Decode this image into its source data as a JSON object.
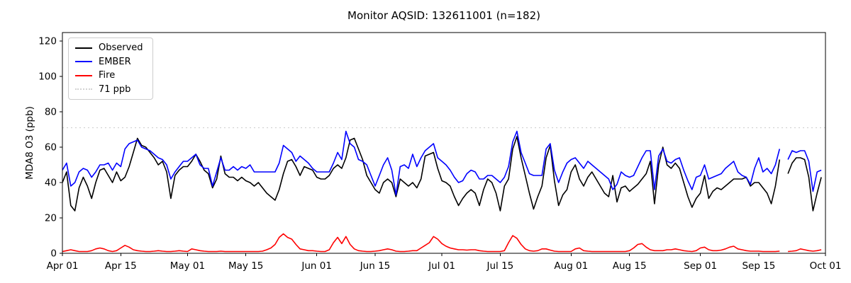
{
  "title": "Monitor AQSID: 132611001 (n=182)",
  "y_axis": {
    "label": "MDA8 O3 (ppb)",
    "ticks": [
      0,
      20,
      40,
      60,
      80,
      100,
      120
    ]
  },
  "x_axis": {
    "tick_labels": [
      "Apr 01",
      "Apr 15",
      "May 01",
      "May 15",
      "Jun 01",
      "Jun 15",
      "Jul 01",
      "Jul 15",
      "Aug 01",
      "Aug 15",
      "Sep 01",
      "Sep 15",
      "Oct 01"
    ],
    "tick_days": [
      0,
      14,
      30,
      44,
      61,
      75,
      91,
      105,
      122,
      136,
      153,
      167,
      183
    ]
  },
  "legend": [
    {
      "label": "Observed",
      "color": "#000000",
      "style": "solid"
    },
    {
      "label": "EMBER",
      "color": "#0000ff",
      "style": "solid"
    },
    {
      "label": "Fire",
      "color": "#ff0000",
      "style": "solid"
    },
    {
      "label": "71 ppb",
      "color": "#d3d3d3",
      "style": "dotted"
    }
  ],
  "chart_data": {
    "type": "line",
    "title": "Monitor AQSID: 132611001 (n=182)",
    "xlabel": "",
    "ylabel": "MDA8 O3 (ppb)",
    "x_start_label": "Apr 01",
    "x_end_label": "Oct 01",
    "x_unit": "day (daily values, index 0 = Apr 01; null = missing day)",
    "n_points": 182,
    "ylim": [
      0,
      124.8
    ],
    "y_ticks": [
      0,
      20,
      40,
      60,
      80,
      100,
      120
    ],
    "x_tick_labels": [
      "Apr 01",
      "Apr 15",
      "May 01",
      "May 15",
      "Jun 01",
      "Jun 15",
      "Jul 01",
      "Jul 15",
      "Aug 01",
      "Aug 15",
      "Sep 01",
      "Sep 15",
      "Oct 01"
    ],
    "x_tick_days": [
      0,
      14,
      30,
      44,
      61,
      75,
      91,
      105,
      122,
      136,
      153,
      167,
      183
    ],
    "total_days": 183,
    "threshold": {
      "value": 71,
      "label": "71 ppb",
      "color": "#d3d3d3",
      "style": "dotted"
    },
    "grid": false,
    "legend_position": "upper left",
    "series": [
      {
        "name": "Observed",
        "color": "#000000",
        "values": [
          40,
          46,
          27,
          24,
          37,
          43,
          38,
          31,
          40,
          47,
          48,
          44,
          40,
          46,
          41,
          43,
          49,
          57,
          65,
          61,
          60,
          57,
          54,
          50,
          52,
          46,
          31,
          44,
          47,
          49,
          49,
          52,
          56,
          52,
          47,
          45,
          37,
          42,
          55,
          45,
          43,
          43,
          41,
          43,
          41,
          40,
          38,
          40,
          37,
          34,
          32,
          30,
          36,
          45,
          52,
          53,
          49,
          44,
          49,
          48,
          47,
          43,
          42,
          42,
          44,
          48,
          50,
          48,
          54,
          64,
          65,
          59,
          53,
          44,
          40,
          36,
          34,
          40,
          42,
          40,
          32,
          42,
          40,
          38,
          40,
          37,
          42,
          55,
          56,
          57,
          48,
          41,
          40,
          38,
          32,
          27,
          31,
          34,
          36,
          34,
          27,
          36,
          42,
          40,
          34,
          24,
          38,
          42,
          59,
          66,
          54,
          44,
          34,
          25,
          32,
          38,
          54,
          61,
          41,
          27,
          33,
          36,
          46,
          50,
          42,
          38,
          43,
          46,
          42,
          38,
          34,
          32,
          44,
          29,
          37,
          38,
          35,
          37,
          39,
          42,
          45,
          52,
          28,
          50,
          60,
          50,
          48,
          51,
          48,
          40,
          32,
          26,
          31,
          34,
          44,
          31,
          35,
          37,
          36,
          38,
          40,
          42,
          42,
          42,
          43,
          38,
          40,
          40,
          37,
          34,
          28,
          38,
          53,
          null,
          45,
          51,
          54,
          54,
          53,
          43,
          24,
          34,
          43
        ]
      },
      {
        "name": "EMBER",
        "color": "#0000ff",
        "values": [
          47,
          51,
          38,
          40,
          46,
          48,
          47,
          43,
          46,
          50,
          50,
          51,
          47,
          51,
          49,
          59,
          62,
          63,
          64,
          60,
          59,
          58,
          56,
          54,
          53,
          50,
          42,
          46,
          49,
          52,
          52,
          54,
          56,
          50,
          48,
          48,
          38,
          46,
          54,
          47,
          47,
          49,
          47,
          49,
          48,
          50,
          46,
          46,
          46,
          46,
          46,
          46,
          51,
          61,
          59,
          57,
          52,
          55,
          53,
          51,
          48,
          46,
          46,
          46,
          46,
          51,
          57,
          53,
          69,
          62,
          60,
          53,
          52,
          50,
          44,
          38,
          44,
          50,
          54,
          47,
          33,
          49,
          50,
          48,
          56,
          49,
          54,
          58,
          60,
          62,
          54,
          52,
          50,
          47,
          43,
          40,
          41,
          45,
          47,
          46,
          42,
          42,
          44,
          44,
          42,
          40,
          43,
          49,
          63,
          69,
          57,
          51,
          45,
          44,
          44,
          44,
          59,
          62,
          47,
          40,
          46,
          51,
          53,
          54,
          51,
          48,
          52,
          50,
          48,
          46,
          44,
          42,
          36,
          39,
          46,
          44,
          43,
          44,
          49,
          54,
          58,
          58,
          36,
          55,
          59,
          52,
          51,
          53,
          54,
          47,
          41,
          36,
          43,
          44,
          50,
          42,
          43,
          44,
          45,
          48,
          50,
          52,
          46,
          44,
          43,
          39,
          48,
          54,
          46,
          48,
          45,
          50,
          59,
          null,
          53,
          58,
          57,
          58,
          58,
          52,
          35,
          46,
          47
        ]
      },
      {
        "name": "Fire",
        "color": "#ff0000",
        "values": [
          1,
          1.5,
          2,
          1.5,
          1,
          1,
          1,
          1.5,
          2.5,
          3,
          2.5,
          1.5,
          1,
          1.5,
          3,
          4.5,
          3.5,
          2,
          1.5,
          1.2,
          1,
          1,
          1.2,
          1.5,
          1.2,
          1,
          1,
          1.2,
          1.5,
          1.2,
          1,
          2.5,
          2,
          1.5,
          1.2,
          1,
          1,
          1,
          1.2,
          1,
          1,
          1,
          1,
          1,
          1,
          1,
          1,
          1,
          1.2,
          2,
          3,
          5,
          9,
          11,
          9,
          8,
          5,
          2.5,
          2,
          1.5,
          1.5,
          1.2,
          1,
          1,
          2,
          6,
          9,
          5.5,
          9.5,
          5,
          2.5,
          1.5,
          1.2,
          1,
          1,
          1.2,
          1.5,
          2,
          2.5,
          2,
          1.2,
          1,
          1,
          1.2,
          1.5,
          1.5,
          3,
          4.5,
          6,
          9.5,
          8,
          5.5,
          4,
          3,
          2.5,
          2,
          2,
          1.8,
          2,
          2,
          1.5,
          1.2,
          1,
          1,
          1,
          1,
          1.5,
          6,
          10,
          8.5,
          5,
          2.5,
          1.5,
          1.2,
          1.5,
          2.5,
          2.5,
          1.8,
          1.2,
          1,
          1,
          1,
          1,
          2.5,
          3,
          1.5,
          1.2,
          1,
          1,
          1,
          1,
          1,
          1,
          1,
          1,
          1,
          1.5,
          3,
          5,
          5.5,
          3.5,
          2,
          1.5,
          1.5,
          1.5,
          2,
          2,
          2.5,
          2,
          1.5,
          1.2,
          1,
          1.5,
          3,
          3.5,
          2,
          1.5,
          1.5,
          1.8,
          2.5,
          3.5,
          4,
          2.5,
          2,
          1.5,
          1.2,
          1.2,
          1.2,
          1,
          1,
          1,
          1,
          1.2,
          null,
          1,
          1.2,
          1.5,
          2.5,
          2,
          1.5,
          1.2,
          1.5,
          2
        ]
      }
    ]
  }
}
